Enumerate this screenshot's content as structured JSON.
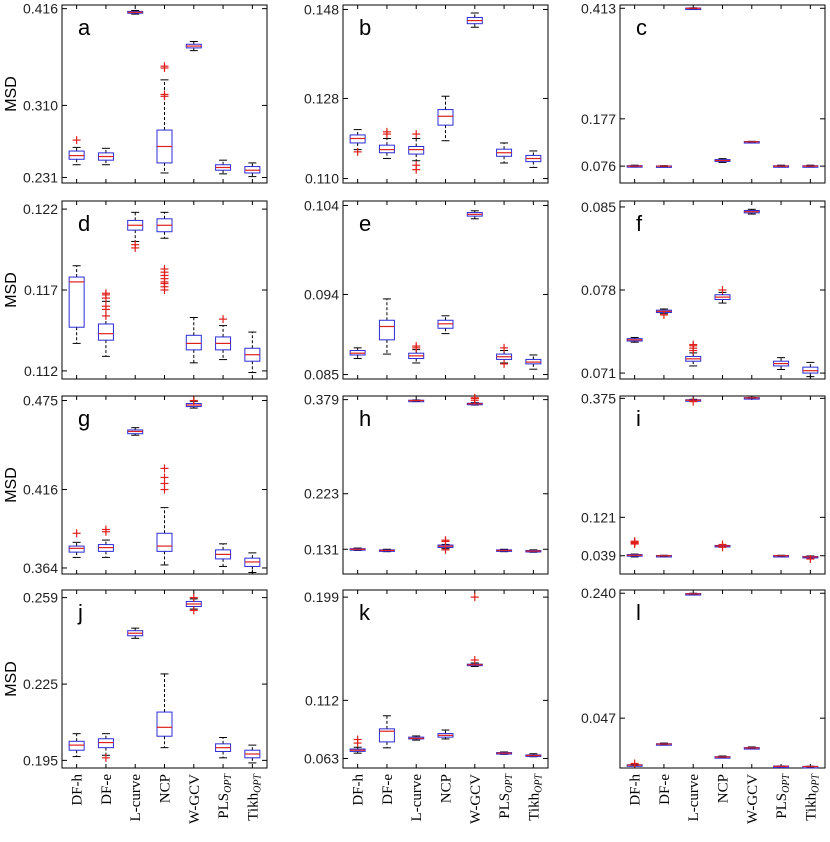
{
  "chart_data": {
    "type": "box",
    "categories": [
      "DF-h",
      "DF-e",
      "L-curve",
      "NCP",
      "W-GCV",
      "PLS_OPT",
      "Tikh_OPT"
    ],
    "category_labels": [
      {
        "main": "DF-h",
        "sub": ""
      },
      {
        "main": "DF-e",
        "sub": ""
      },
      {
        "main": "L-curve",
        "sub": ""
      },
      {
        "main": "NCP",
        "sub": ""
      },
      {
        "main": "W-GCV",
        "sub": ""
      },
      {
        "main": "PLS",
        "sub": "OPT"
      },
      {
        "main": "Tikh",
        "sub": "OPT"
      }
    ],
    "ylabel": "MSD",
    "colors": {
      "box": "#2b2bd6",
      "median": "#e0201c",
      "outlier": "#e0201c",
      "whisker": "#000000",
      "frame": "#000000"
    },
    "panels": [
      {
        "label": "a",
        "yticks": [
          "0.231",
          "0.310",
          "0.416"
        ],
        "ylim": [
          0.225,
          0.42
        ],
        "boxes": [
          {
            "q1": 0.251,
            "med": 0.255,
            "q3": 0.26,
            "lo": 0.245,
            "hi": 0.264,
            "out": [
              0.272
            ]
          },
          {
            "q1": 0.25,
            "med": 0.254,
            "q3": 0.258,
            "lo": 0.245,
            "hi": 0.263,
            "out": []
          },
          {
            "q1": 0.411,
            "med": 0.412,
            "q3": 0.413,
            "lo": 0.41,
            "hi": 0.414,
            "out": []
          },
          {
            "q1": 0.247,
            "med": 0.265,
            "q3": 0.283,
            "lo": 0.236,
            "hi": 0.338,
            "out": [
              0.32,
              0.322,
              0.351,
              0.353
            ]
          },
          {
            "q1": 0.373,
            "med": 0.375,
            "q3": 0.377,
            "lo": 0.37,
            "hi": 0.38,
            "out": []
          },
          {
            "q1": 0.239,
            "med": 0.242,
            "q3": 0.245,
            "lo": 0.235,
            "hi": 0.25,
            "out": []
          },
          {
            "q1": 0.236,
            "med": 0.239,
            "q3": 0.243,
            "lo": 0.232,
            "hi": 0.247,
            "out": []
          }
        ]
      },
      {
        "label": "b",
        "yticks": [
          "0.110",
          "0.128",
          "0.148"
        ],
        "ylim": [
          0.109,
          0.149
        ],
        "boxes": [
          {
            "q1": 0.118,
            "med": 0.119,
            "q3": 0.1198,
            "lo": 0.1165,
            "hi": 0.121,
            "out": [
              0.116
            ]
          },
          {
            "q1": 0.1158,
            "med": 0.1165,
            "q3": 0.1175,
            "lo": 0.1145,
            "hi": 0.119,
            "out": [
              0.12,
              0.1205
            ]
          },
          {
            "q1": 0.1155,
            "med": 0.1165,
            "q3": 0.1172,
            "lo": 0.114,
            "hi": 0.119,
            "out": [
              0.113,
              0.112,
              0.12
            ]
          },
          {
            "q1": 0.122,
            "med": 0.124,
            "q3": 0.1255,
            "lo": 0.1185,
            "hi": 0.1285,
            "out": []
          },
          {
            "q1": 0.1448,
            "med": 0.1455,
            "q3": 0.1462,
            "lo": 0.144,
            "hi": 0.1472,
            "out": []
          },
          {
            "q1": 0.115,
            "med": 0.1158,
            "q3": 0.1166,
            "lo": 0.1135,
            "hi": 0.118,
            "out": []
          },
          {
            "q1": 0.1138,
            "med": 0.1145,
            "q3": 0.1152,
            "lo": 0.1125,
            "hi": 0.1162,
            "out": []
          }
        ]
      },
      {
        "label": "c",
        "yticks": [
          "0.076",
          "0.177",
          "0.413"
        ],
        "ylim": [
          0.04,
          0.42
        ],
        "boxes": [
          {
            "q1": 0.075,
            "med": 0.076,
            "q3": 0.077,
            "lo": 0.074,
            "hi": 0.078,
            "out": []
          },
          {
            "q1": 0.0755,
            "med": 0.076,
            "q3": 0.0765,
            "lo": 0.075,
            "hi": 0.077,
            "out": []
          },
          {
            "q1": 0.4125,
            "med": 0.413,
            "q3": 0.4135,
            "lo": 0.412,
            "hi": 0.414,
            "out": []
          },
          {
            "q1": 0.086,
            "med": 0.088,
            "q3": 0.09,
            "lo": 0.084,
            "hi": 0.092,
            "out": []
          },
          {
            "q1": 0.1275,
            "med": 0.128,
            "q3": 0.1285,
            "lo": 0.127,
            "hi": 0.129,
            "out": []
          },
          {
            "q1": 0.0752,
            "med": 0.076,
            "q3": 0.0768,
            "lo": 0.074,
            "hi": 0.078,
            "out": []
          },
          {
            "q1": 0.0752,
            "med": 0.076,
            "q3": 0.0768,
            "lo": 0.074,
            "hi": 0.078,
            "out": []
          }
        ]
      },
      {
        "label": "d",
        "yticks": [
          "0.112",
          "0.117",
          "0.122"
        ],
        "ylim": [
          0.1115,
          0.1225
        ],
        "boxes": [
          {
            "q1": 0.1147,
            "med": 0.1175,
            "q3": 0.1178,
            "lo": 0.1137,
            "hi": 0.1185,
            "out": []
          },
          {
            "q1": 0.1139,
            "med": 0.1143,
            "q3": 0.1149,
            "lo": 0.1129,
            "hi": 0.1163,
            "out": [
              0.1165,
              0.1167,
              0.1168,
              0.116,
              0.1158,
              0.1154
            ]
          },
          {
            "q1": 0.1207,
            "med": 0.121,
            "q3": 0.1213,
            "lo": 0.12,
            "hi": 0.1218,
            "out": [
              0.1196,
              0.1198
            ]
          },
          {
            "q1": 0.1206,
            "med": 0.121,
            "q3": 0.1214,
            "lo": 0.1202,
            "hi": 0.1218,
            "out": [
              0.117,
              0.1172,
              0.1175,
              0.1177,
              0.1179,
              0.1181,
              0.1183,
              0.1174
            ]
          },
          {
            "q1": 0.1133,
            "med": 0.1137,
            "q3": 0.1142,
            "lo": 0.1125,
            "hi": 0.1153,
            "out": []
          },
          {
            "q1": 0.1133,
            "med": 0.1137,
            "q3": 0.1141,
            "lo": 0.1127,
            "hi": 0.1148,
            "out": [
              0.1152
            ]
          },
          {
            "q1": 0.1126,
            "med": 0.113,
            "q3": 0.1134,
            "lo": 0.1119,
            "hi": 0.1144,
            "out": []
          }
        ]
      },
      {
        "label": "e",
        "yticks": [
          "0.085",
          "0.094",
          "0.104"
        ],
        "ylim": [
          0.0845,
          0.1045
        ],
        "boxes": [
          {
            "q1": 0.0872,
            "med": 0.0874,
            "q3": 0.0877,
            "lo": 0.0868,
            "hi": 0.088,
            "out": []
          },
          {
            "q1": 0.0889,
            "med": 0.0904,
            "q3": 0.0911,
            "lo": 0.0873,
            "hi": 0.0935,
            "out": []
          },
          {
            "q1": 0.0868,
            "med": 0.0871,
            "q3": 0.0874,
            "lo": 0.0863,
            "hi": 0.0878,
            "out": [
              0.088,
              0.0882
            ]
          },
          {
            "q1": 0.0902,
            "med": 0.0907,
            "q3": 0.0911,
            "lo": 0.0896,
            "hi": 0.0916,
            "out": []
          },
          {
            "q1": 0.1028,
            "med": 0.103,
            "q3": 0.1032,
            "lo": 0.1025,
            "hi": 0.1034,
            "out": []
          },
          {
            "q1": 0.0867,
            "med": 0.087,
            "q3": 0.0873,
            "lo": 0.0863,
            "hi": 0.0877,
            "out": [
              0.0862,
              0.088
            ]
          },
          {
            "q1": 0.0862,
            "med": 0.0864,
            "q3": 0.0867,
            "lo": 0.0856,
            "hi": 0.0872,
            "out": []
          }
        ]
      },
      {
        "label": "f",
        "yticks": [
          "0.071",
          "0.078",
          "0.085"
        ],
        "ylim": [
          0.0705,
          0.0855
        ],
        "boxes": [
          {
            "q1": 0.0737,
            "med": 0.0738,
            "q3": 0.0739,
            "lo": 0.0736,
            "hi": 0.074,
            "out": []
          },
          {
            "q1": 0.0761,
            "med": 0.0762,
            "q3": 0.0763,
            "lo": 0.076,
            "hi": 0.0764,
            "out": [
              0.0759
            ]
          },
          {
            "q1": 0.072,
            "med": 0.0722,
            "q3": 0.0724,
            "lo": 0.0716,
            "hi": 0.0727,
            "out": [
              0.0729,
              0.0731,
              0.0733,
              0.0734
            ]
          },
          {
            "q1": 0.0772,
            "med": 0.0774,
            "q3": 0.0776,
            "lo": 0.0769,
            "hi": 0.0778,
            "out": [
              0.078
            ]
          },
          {
            "q1": 0.0845,
            "med": 0.0846,
            "q3": 0.0847,
            "lo": 0.0844,
            "hi": 0.0848,
            "out": []
          },
          {
            "q1": 0.0716,
            "med": 0.0718,
            "q3": 0.072,
            "lo": 0.0713,
            "hi": 0.0723,
            "out": []
          },
          {
            "q1": 0.071,
            "med": 0.0712,
            "q3": 0.0715,
            "lo": 0.0707,
            "hi": 0.0719,
            "out": []
          }
        ]
      },
      {
        "label": "g",
        "yticks": [
          "0.364",
          "0.416",
          "0.475"
        ],
        "ylim": [
          0.36,
          0.478
        ],
        "boxes": [
          {
            "q1": 0.3745,
            "med": 0.377,
            "q3": 0.3785,
            "lo": 0.371,
            "hi": 0.381,
            "out": [
              0.387
            ]
          },
          {
            "q1": 0.375,
            "med": 0.3775,
            "q3": 0.3795,
            "lo": 0.371,
            "hi": 0.3825,
            "out": [
              0.388,
              0.3895
            ]
          },
          {
            "q1": 0.453,
            "med": 0.4545,
            "q3": 0.4555,
            "lo": 0.452,
            "hi": 0.457,
            "out": []
          },
          {
            "q1": 0.375,
            "med": 0.3785,
            "q3": 0.387,
            "lo": 0.366,
            "hi": 0.404,
            "out": [
              0.416,
              0.42,
              0.424,
              0.43
            ]
          },
          {
            "q1": 0.471,
            "med": 0.472,
            "q3": 0.473,
            "lo": 0.47,
            "hi": 0.4745,
            "out": [
              0.475
            ]
          },
          {
            "q1": 0.37,
            "med": 0.373,
            "q3": 0.376,
            "lo": 0.365,
            "hi": 0.38,
            "out": []
          },
          {
            "q1": 0.365,
            "med": 0.368,
            "q3": 0.3705,
            "lo": 0.361,
            "hi": 0.374,
            "out": []
          }
        ]
      },
      {
        "label": "h",
        "yticks": [
          "0.131",
          "0.223",
          "0.379"
        ],
        "ylim": [
          0.09,
          0.385
        ],
        "boxes": [
          {
            "q1": 0.13,
            "med": 0.131,
            "q3": 0.132,
            "lo": 0.129,
            "hi": 0.133,
            "out": []
          },
          {
            "q1": 0.128,
            "med": 0.129,
            "q3": 0.13,
            "lo": 0.127,
            "hi": 0.131,
            "out": []
          },
          {
            "q1": 0.377,
            "med": 0.3775,
            "q3": 0.378,
            "lo": 0.3765,
            "hi": 0.3785,
            "out": []
          },
          {
            "q1": 0.134,
            "med": 0.136,
            "q3": 0.138,
            "lo": 0.132,
            "hi": 0.139,
            "out": [
              0.13,
              0.144,
              0.146
            ]
          },
          {
            "q1": 0.371,
            "med": 0.372,
            "q3": 0.373,
            "lo": 0.37,
            "hi": 0.374,
            "out": [
              0.378,
              0.381,
              0.382
            ]
          },
          {
            "q1": 0.128,
            "med": 0.129,
            "q3": 0.13,
            "lo": 0.127,
            "hi": 0.131,
            "out": []
          },
          {
            "q1": 0.127,
            "med": 0.128,
            "q3": 0.129,
            "lo": 0.126,
            "hi": 0.13,
            "out": []
          }
        ]
      },
      {
        "label": "i",
        "yticks": [
          "0.039",
          "0.121",
          "0.375"
        ],
        "ylim": [
          0.0,
          0.38
        ],
        "boxes": [
          {
            "q1": 0.038,
            "med": 0.04,
            "q3": 0.0415,
            "lo": 0.0365,
            "hi": 0.0425,
            "out": [
              0.064,
              0.066,
              0.067,
              0.068,
              0.07
            ]
          },
          {
            "q1": 0.0385,
            "med": 0.039,
            "q3": 0.0395,
            "lo": 0.038,
            "hi": 0.04,
            "out": []
          },
          {
            "q1": 0.37,
            "med": 0.371,
            "q3": 0.372,
            "lo": 0.369,
            "hi": 0.373,
            "out": [
              0.368
            ]
          },
          {
            "q1": 0.059,
            "med": 0.06,
            "q3": 0.061,
            "lo": 0.058,
            "hi": 0.062,
            "out": [
              0.057,
              0.063
            ]
          },
          {
            "q1": 0.3755,
            "med": 0.376,
            "q3": 0.3765,
            "lo": 0.375,
            "hi": 0.377,
            "out": []
          },
          {
            "q1": 0.0385,
            "med": 0.039,
            "q3": 0.0395,
            "lo": 0.038,
            "hi": 0.04,
            "out": []
          },
          {
            "q1": 0.0355,
            "med": 0.0365,
            "q3": 0.0375,
            "lo": 0.034,
            "hi": 0.0385,
            "out": [
              0.032
            ]
          }
        ]
      },
      {
        "label": "j",
        "yticks": [
          "0.195",
          "0.225",
          "0.259"
        ],
        "ylim": [
          0.192,
          0.262
        ],
        "boxes": [
          {
            "q1": 0.199,
            "med": 0.201,
            "q3": 0.2025,
            "lo": 0.1965,
            "hi": 0.2055,
            "out": []
          },
          {
            "q1": 0.2,
            "med": 0.202,
            "q3": 0.2035,
            "lo": 0.197,
            "hi": 0.2055,
            "out": [
              0.196
            ]
          },
          {
            "q1": 0.244,
            "med": 0.245,
            "q3": 0.246,
            "lo": 0.243,
            "hi": 0.247,
            "out": []
          },
          {
            "q1": 0.2045,
            "med": 0.208,
            "q3": 0.214,
            "lo": 0.2,
            "hi": 0.229,
            "out": []
          },
          {
            "q1": 0.2555,
            "med": 0.2565,
            "q3": 0.2575,
            "lo": 0.2545,
            "hi": 0.2585,
            "out": [
              0.254,
              0.259
            ]
          },
          {
            "q1": 0.1985,
            "med": 0.2,
            "q3": 0.2015,
            "lo": 0.196,
            "hi": 0.204,
            "out": []
          },
          {
            "q1": 0.196,
            "med": 0.1975,
            "q3": 0.199,
            "lo": 0.194,
            "hi": 0.201,
            "out": []
          }
        ]
      },
      {
        "label": "k",
        "yticks": [
          "0.063",
          "0.112",
          "0.199"
        ],
        "ylim": [
          0.055,
          0.205
        ],
        "boxes": [
          {
            "q1": 0.069,
            "med": 0.07,
            "q3": 0.071,
            "lo": 0.0675,
            "hi": 0.0725,
            "out": [
              0.076,
              0.079
            ]
          },
          {
            "q1": 0.077,
            "med": 0.086,
            "q3": 0.088,
            "lo": 0.072,
            "hi": 0.099,
            "out": []
          },
          {
            "q1": 0.0795,
            "med": 0.08,
            "q3": 0.081,
            "lo": 0.0785,
            "hi": 0.082,
            "out": []
          },
          {
            "q1": 0.081,
            "med": 0.0825,
            "q3": 0.084,
            "lo": 0.0795,
            "hi": 0.087,
            "out": []
          },
          {
            "q1": 0.1415,
            "med": 0.142,
            "q3": 0.1425,
            "lo": 0.1405,
            "hi": 0.1435,
            "out": [
              0.146,
              0.199
            ]
          },
          {
            "q1": 0.067,
            "med": 0.0675,
            "q3": 0.068,
            "lo": 0.0665,
            "hi": 0.0685,
            "out": []
          },
          {
            "q1": 0.065,
            "med": 0.0655,
            "q3": 0.066,
            "lo": 0.0645,
            "hi": 0.067,
            "out": []
          }
        ]
      },
      {
        "label": "l",
        "yticks": [
          "0.047",
          "0.240"
        ],
        "ylim": [
          -0.03,
          0.245
        ],
        "boxes": [
          {
            "q1": -0.026,
            "med": -0.0255,
            "q3": -0.025,
            "lo": -0.027,
            "hi": -0.0245,
            "out": [
              -0.023
            ]
          },
          {
            "q1": 0.0065,
            "med": 0.007,
            "q3": 0.0075,
            "lo": 0.0055,
            "hi": 0.0085,
            "out": []
          },
          {
            "q1": 0.2385,
            "med": 0.239,
            "q3": 0.2395,
            "lo": 0.238,
            "hi": 0.24,
            "out": []
          },
          {
            "q1": -0.0135,
            "med": -0.013,
            "q3": -0.0125,
            "lo": -0.0145,
            "hi": -0.0115,
            "out": []
          },
          {
            "q1": 0.0005,
            "med": 0.001,
            "q3": 0.0015,
            "lo": -0.0005,
            "hi": 0.0025,
            "out": []
          },
          {
            "q1": -0.028,
            "med": -0.0275,
            "q3": -0.027,
            "lo": -0.0285,
            "hi": -0.0268,
            "out": []
          },
          {
            "q1": -0.028,
            "med": -0.0278,
            "q3": -0.0275,
            "lo": -0.0285,
            "hi": -0.0272,
            "out": []
          }
        ]
      }
    ]
  }
}
